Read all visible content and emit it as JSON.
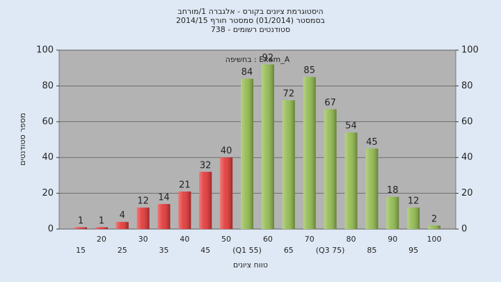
{
  "chart_data": {
    "type": "bar",
    "title": [
      "היסטוגרמת ציונים בקורס - אלגברה 1/מורחב",
      "בסמסטר  (01/2014)  סמסטר חורף  2014/15",
      "סטודנטים רשומים - 738"
    ],
    "annotation": "בחשיפה : Exam_A",
    "ylabel": "מספר סטודנטים",
    "xlabel": "טווח ציונים",
    "categories": [
      "15",
      "20",
      "25",
      "30",
      "35",
      "40",
      "45",
      "50",
      "(Q1 55)",
      "60",
      "65",
      "70",
      "(Q3 75)",
      "80",
      "85",
      "90",
      "95",
      "100"
    ],
    "values": [
      1,
      1,
      4,
      12,
      14,
      21,
      32,
      40,
      84,
      92,
      72,
      85,
      67,
      54,
      45,
      18,
      12,
      2
    ],
    "colors": [
      "#e23232",
      "#e23232",
      "#e23232",
      "#e23232",
      "#e23232",
      "#e23232",
      "#e23232",
      "#e23232",
      "#8fb84a",
      "#8fb84a",
      "#8fb84a",
      "#8fb84a",
      "#8fb84a",
      "#8fb84a",
      "#8fb84a",
      "#8fb84a",
      "#8fb84a",
      "#8fb84a"
    ],
    "ylim": [
      0,
      100
    ],
    "yticks": [
      0,
      20,
      40,
      60,
      80,
      100
    ],
    "y2lim": [
      0,
      100
    ],
    "y2ticks": [
      0,
      20,
      40,
      60,
      80,
      100
    ],
    "grid": true
  }
}
